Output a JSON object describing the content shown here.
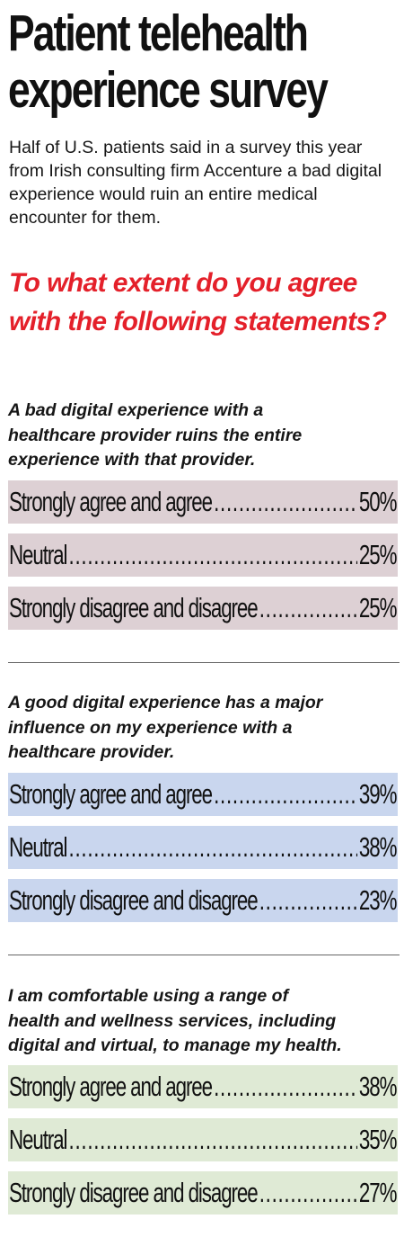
{
  "title_line1": "Patient telehealth",
  "title_line2": "experience survey",
  "subtitle": "Half of U.S. patients said in a survey this year from Irish consulting firm Accenture a bad digital experience would ruin an entire medical encounter for them.",
  "question": "To what extent do you agree with the following statements?",
  "colors": {
    "question": "#e4202a",
    "section1": "#ddd0d4",
    "section2": "#c9d6ee",
    "section3": "#dfead5"
  },
  "sections": [
    {
      "statement_lines": [
        "A bad digital experience with a",
        "healthcare provider ruins the entire",
        "experience with that provider."
      ],
      "rows": [
        {
          "label": "Strongly agree and agree",
          "value": "50%"
        },
        {
          "label": "Neutral",
          "value": "25%"
        },
        {
          "label": "Strongly disagree and disagree",
          "value": "25%"
        }
      ]
    },
    {
      "statement_lines": [
        "A good digital experience has a major",
        "influence on my experience with a",
        "healthcare provider."
      ],
      "rows": [
        {
          "label": "Strongly agree and agree",
          "value": "39%"
        },
        {
          "label": "Neutral",
          "value": "38%"
        },
        {
          "label": "Strongly disagree and disagree",
          "value": "23%"
        }
      ]
    },
    {
      "statement_lines": [
        "I am comfortable using a range of",
        "health and wellness services, including",
        "digital and virtual, to manage my health."
      ],
      "rows": [
        {
          "label": "Strongly agree and agree",
          "value": "38%"
        },
        {
          "label": "Neutral",
          "value": "35%"
        },
        {
          "label": "Strongly disagree and disagree",
          "value": "27%"
        }
      ]
    }
  ],
  "chart_data": {
    "type": "table",
    "title": "Patient telehealth experience survey",
    "subtitle": "To what extent do you agree with the following statements?",
    "categories": [
      "Strongly agree and agree",
      "Neutral",
      "Strongly disagree and disagree"
    ],
    "unit": "%",
    "series": [
      {
        "name": "A bad digital experience with a healthcare provider ruins the entire experience with that provider.",
        "values": [
          50,
          25,
          25
        ]
      },
      {
        "name": "A good digital experience has a major influence on my experience with a healthcare provider.",
        "values": [
          39,
          38,
          23
        ]
      },
      {
        "name": "I am comfortable using a range of health and wellness services, including digital and virtual, to manage my health.",
        "values": [
          38,
          35,
          27
        ]
      }
    ]
  }
}
